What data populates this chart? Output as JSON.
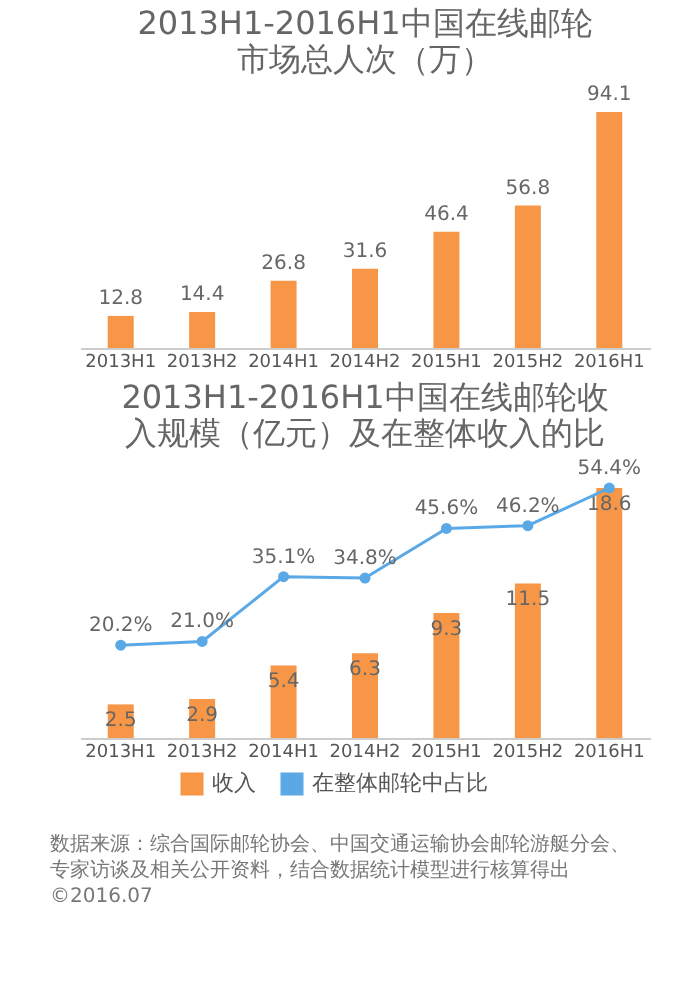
{
  "chart_data": [
    {
      "type": "bar",
      "title": [
        "2013H1-2016H1中国在线邮轮",
        "市场总人次（万）"
      ],
      "categories": [
        "2013H1",
        "2013H2",
        "2014H1",
        "2014H2",
        "2015H1",
        "2015H2",
        "2016H1"
      ],
      "values": [
        12.8,
        14.4,
        26.8,
        31.6,
        46.4,
        56.8,
        94.1
      ],
      "color": "#f79646",
      "data_labels": true,
      "tick_labels": "x"
    },
    {
      "type": "bar",
      "title": [
        "2013H1-2016H1中国在线邮轮收",
        "入规模（亿元）及在整体收入的比"
      ],
      "categories": [
        "2013H1",
        "2013H2",
        "2014H1",
        "2014H2",
        "2015H1",
        "2015H2",
        "2016H1"
      ],
      "series": [
        {
          "name": "收入",
          "type": "bar",
          "color": "#f79646",
          "values": [
            2.5,
            2.9,
            5.4,
            6.3,
            9.3,
            11.5,
            18.6
          ]
        },
        {
          "name": "在整体邮轮中占比",
          "type": "line",
          "axis": "y2",
          "color": "#5aa9e6",
          "values": [
            20.2,
            21.0,
            35.1,
            34.8,
            45.6,
            46.2,
            54.4
          ],
          "value_labels": [
            "20.2%",
            "21.0%",
            "35.1%",
            "34.8%",
            "45.6%",
            "46.2%",
            "54.4%"
          ]
        }
      ],
      "data_labels": true,
      "tick_labels": "x",
      "legend": "bottom",
      "marker": "circle",
      "annotations": [
        "数据来源：综合国际邮轮协会、中国交通运输协会邮轮游艇分会、",
        "专家访谈及相关公开资料，结合数据统计模型进行核算得出",
        "©2016.07"
      ]
    }
  ]
}
